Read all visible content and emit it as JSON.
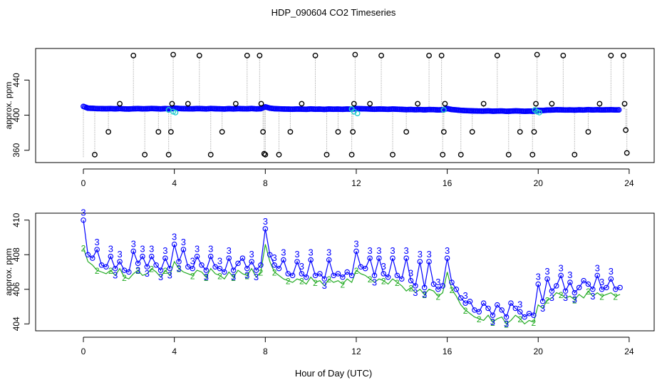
{
  "title": "HDP_090604  CO2 Timeseries",
  "xlabel": "Hour of Day (UTC)",
  "colors": {
    "blue": "#0000ff",
    "cyan": "#22cccc",
    "green": "#22aa22",
    "black": "#000000",
    "grey": "#999999"
  },
  "chart_data": [
    {
      "type": "scatter",
      "panel": "top",
      "ylabel": "approx. ppm",
      "xlim": [
        -2.1,
        25.1
      ],
      "ylim": [
        346,
        476
      ],
      "xticks": [
        0,
        4,
        8,
        12,
        16,
        20,
        24
      ],
      "yticks": [
        360,
        400,
        440
      ],
      "series": [
        {
          "name": "blue",
          "x": [
            0,
            0.2,
            0.4,
            0.6,
            0.8,
            1,
            1.2,
            1.4,
            1.6,
            1.8,
            2,
            2.2,
            2.4,
            2.6,
            2.8,
            3,
            3.2,
            3.4,
            3.6,
            3.8,
            4,
            4.2,
            4.4,
            4.6,
            4.8,
            5,
            5.2,
            5.4,
            5.6,
            5.8,
            6,
            6.2,
            6.4,
            6.6,
            6.8,
            7,
            7.2,
            7.4,
            7.6,
            7.8,
            8,
            8.2,
            8.4,
            8.6,
            8.8,
            9,
            9.2,
            9.4,
            9.6,
            9.8,
            10,
            10.2,
            10.4,
            10.6,
            10.8,
            11,
            11.2,
            11.4,
            11.6,
            11.8,
            12,
            12.2,
            12.4,
            12.6,
            12.8,
            13,
            13.2,
            13.4,
            13.6,
            13.8,
            14,
            14.2,
            14.4,
            14.6,
            14.8,
            15,
            15.2,
            15.4,
            15.6,
            15.8,
            16,
            16.2,
            16.4,
            16.6,
            16.8,
            17,
            17.2,
            17.4,
            17.6,
            17.8,
            18,
            18.2,
            18.4,
            18.6,
            18.8,
            19,
            19.2,
            19.4,
            19.6,
            19.8,
            20,
            20.2,
            20.4,
            20.6,
            20.8,
            21,
            21.2,
            21.4,
            21.6,
            21.8,
            22,
            22.2,
            22.4,
            22.6,
            22.8,
            23,
            23.2,
            23.4,
            23.6
          ],
          "y": [
            410,
            408,
            407.8,
            407.5,
            407.4,
            407.3,
            407.5,
            407.2,
            407.6,
            407.1,
            407,
            407.3,
            407.5,
            407.2,
            407.3,
            407.6,
            407.4,
            407.1,
            407.5,
            407.2,
            408,
            407.6,
            407.4,
            407.3,
            407.2,
            407.5,
            407.4,
            407.1,
            407.6,
            407.3,
            407.2,
            407,
            407.4,
            407.1,
            407.5,
            407.3,
            407.2,
            407.6,
            407.1,
            407.4,
            409.5,
            408,
            407.4,
            407.2,
            407,
            406.9,
            406.8,
            407,
            406.9,
            406.7,
            407.1,
            406.8,
            406.9,
            406.6,
            407,
            406.8,
            406.9,
            406.7,
            407,
            406.8,
            407.5,
            407.3,
            407.2,
            407,
            406.8,
            407,
            406.9,
            406.7,
            407,
            406.8,
            406.6,
            406.3,
            406.5,
            406.2,
            406.4,
            406.1,
            406.4,
            406.3,
            406,
            406.2,
            407.5,
            406.4,
            406,
            405.5,
            405.2,
            405,
            404.8,
            404.7,
            404.6,
            404.9,
            404.5,
            404.7,
            404.8,
            404.4,
            404.6,
            404.9,
            404.7,
            404.4,
            404.6,
            404.5,
            405.5,
            405.3,
            405.8,
            405.9,
            406.2,
            406.1,
            405.9,
            406,
            405.8,
            406.1,
            405.9,
            406.3,
            406,
            406.2,
            406,
            406.1,
            406.2,
            406,
            406.1
          ]
        },
        {
          "name": "cyan",
          "x": [
            3.75,
            3.95,
            4.05,
            11.8,
            11.9,
            12.05,
            15.85,
            19.85,
            19.95,
            20.05
          ],
          "y": [
            406,
            404,
            403,
            407,
            404,
            402,
            406,
            406,
            404,
            403
          ]
        },
        {
          "name": "black",
          "x": [
            0.5,
            1.1,
            1.6,
            2.2,
            2.7,
            3.3,
            3.75,
            3.85,
            3.9,
            3.95,
            4.6,
            5.1,
            5.6,
            6.1,
            6.7,
            7.2,
            7.75,
            7.82,
            7.9,
            7.95,
            8,
            8.6,
            9.1,
            9.6,
            10.2,
            10.7,
            11.2,
            11.8,
            11.85,
            11.9,
            11.95,
            12.6,
            13.1,
            13.6,
            14.2,
            14.7,
            15.2,
            15.75,
            15.8,
            15.85,
            15.9,
            16.6,
            17.1,
            17.6,
            18.2,
            18.7,
            19.2,
            19.75,
            19.82,
            19.9,
            19.95,
            20.6,
            21.1,
            21.6,
            22.2,
            22.7,
            23.2,
            23.75,
            23.8,
            23.85,
            23.9
          ],
          "y": [
            355,
            381,
            413,
            468,
            355,
            381,
            355,
            381,
            413,
            469,
            413,
            468,
            355,
            381,
            413,
            468,
            468,
            413,
            381,
            356,
            355,
            355,
            381,
            413,
            468,
            355,
            381,
            355,
            381,
            413,
            469,
            413,
            468,
            355,
            381,
            413,
            468,
            468,
            355,
            381,
            413,
            355,
            381,
            413,
            468,
            355,
            381,
            355,
            381,
            413,
            469,
            413,
            468,
            355,
            381,
            413,
            468,
            468,
            413,
            383,
            357
          ]
        }
      ]
    },
    {
      "type": "line",
      "panel": "bottom",
      "ylabel": "approx. ppm",
      "xlim": [
        -2.1,
        25.1
      ],
      "ylim": [
        403.6,
        410.4
      ],
      "xticks": [
        0,
        4,
        8,
        12,
        16,
        20,
        24
      ],
      "yticks": [
        404,
        406,
        408,
        410
      ],
      "series": [
        {
          "name": "3",
          "x": [
            0,
            0.2,
            0.4,
            0.6,
            0.8,
            1,
            1.2,
            1.4,
            1.6,
            1.8,
            2,
            2.2,
            2.4,
            2.6,
            2.8,
            3,
            3.2,
            3.4,
            3.6,
            3.8,
            4,
            4.2,
            4.4,
            4.6,
            4.8,
            5,
            5.2,
            5.4,
            5.6,
            5.8,
            6,
            6.2,
            6.4,
            6.6,
            6.8,
            7,
            7.2,
            7.4,
            7.6,
            7.8,
            8,
            8.2,
            8.4,
            8.6,
            8.8,
            9,
            9.2,
            9.4,
            9.6,
            9.8,
            10,
            10.2,
            10.4,
            10.6,
            10.8,
            11,
            11.2,
            11.4,
            11.6,
            11.8,
            12,
            12.2,
            12.4,
            12.6,
            12.8,
            13,
            13.2,
            13.4,
            13.6,
            13.8,
            14,
            14.2,
            14.4,
            14.6,
            14.8,
            15,
            15.2,
            15.4,
            15.6,
            15.8,
            16,
            16.2,
            16.4,
            16.6,
            16.8,
            17,
            17.2,
            17.4,
            17.6,
            17.8,
            18,
            18.2,
            18.4,
            18.6,
            18.8,
            19,
            19.2,
            19.4,
            19.6,
            19.8,
            20,
            20.2,
            20.4,
            20.6,
            20.8,
            21,
            21.2,
            21.4,
            21.6,
            21.8,
            22,
            22.2,
            22.4,
            22.6,
            22.8,
            23,
            23.2,
            23.4,
            23.6
          ],
          "y": [
            410,
            408,
            407.8,
            408.3,
            407.4,
            407.3,
            407.9,
            407.2,
            407.6,
            407.1,
            407,
            408.2,
            407.5,
            407.9,
            407.3,
            407.9,
            407.4,
            407.1,
            407.8,
            407.2,
            408.6,
            407.6,
            408.3,
            407.3,
            407.2,
            407.9,
            407.4,
            407.1,
            407.9,
            407.3,
            407.2,
            407,
            407.8,
            407.1,
            407.5,
            407.8,
            407.2,
            407.6,
            407.1,
            407.4,
            409.5,
            408,
            407.4,
            407.2,
            407.7,
            406.9,
            406.8,
            407.6,
            406.9,
            406.7,
            407.7,
            406.8,
            406.9,
            406.6,
            407.7,
            406.8,
            406.9,
            406.7,
            407,
            406.8,
            408.2,
            407.3,
            407.2,
            407.8,
            406.8,
            407.8,
            406.9,
            406.7,
            407.8,
            406.8,
            406.6,
            407.8,
            406.5,
            406.2,
            407.6,
            406.1,
            407.6,
            406.3,
            406,
            406.2,
            407.8,
            406.4,
            406,
            405.5,
            405.2,
            405.3,
            404.8,
            404.7,
            405.2,
            404.9,
            404.5,
            405.1,
            404.8,
            404.4,
            405.2,
            404.9,
            404.7,
            404.4,
            404.6,
            404.5,
            406.3,
            405.3,
            406.6,
            405.9,
            406.2,
            406.8,
            405.9,
            406.4,
            405.8,
            406.1,
            406.5,
            406.3,
            406,
            406.8,
            406,
            406.1,
            406.6,
            406,
            406.1
          ]
        },
        {
          "name": "2",
          "x": [
            0,
            0.2,
            0.4,
            0.6,
            0.8,
            1,
            1.2,
            1.4,
            1.6,
            1.8,
            2,
            2.2,
            2.4,
            2.6,
            2.8,
            3,
            3.2,
            3.4,
            3.6,
            3.8,
            4,
            4.2,
            4.4,
            4.6,
            4.8,
            5,
            5.2,
            5.4,
            5.6,
            5.8,
            6,
            6.2,
            6.4,
            6.6,
            6.8,
            7,
            7.2,
            7.4,
            7.6,
            7.8,
            8,
            8.2,
            8.4,
            8.6,
            8.8,
            9,
            9.2,
            9.4,
            9.6,
            9.8,
            10,
            10.2,
            10.4,
            10.6,
            10.8,
            11,
            11.2,
            11.4,
            11.6,
            11.8,
            12,
            12.2,
            12.4,
            12.6,
            12.8,
            13,
            13.2,
            13.4,
            13.6,
            13.8,
            14,
            14.2,
            14.4,
            14.6,
            14.8,
            15,
            15.2,
            15.4,
            15.6,
            15.8,
            16,
            16.2,
            16.4,
            16.6,
            16.8,
            17,
            17.2,
            17.4,
            17.6,
            17.8,
            18,
            18.2,
            18.4,
            18.6,
            18.8,
            19,
            19.2,
            19.4,
            19.6,
            19.8,
            20,
            20.2,
            20.4,
            20.6,
            20.8,
            21,
            21.2,
            21.4,
            21.6,
            21.8,
            22,
            22.2,
            22.4,
            22.6,
            22.8,
            23,
            23.2,
            23.4,
            23.6
          ],
          "y": [
            408.4,
            407.6,
            407.4,
            407.1,
            407,
            406.9,
            407.1,
            406.8,
            407.2,
            406.7,
            406.6,
            406.9,
            407.1,
            406.8,
            406.9,
            407.2,
            407,
            406.7,
            407.1,
            406.8,
            407.6,
            407.2,
            407,
            406.9,
            406.8,
            407.1,
            407,
            406.7,
            407.2,
            406.9,
            406.8,
            406.6,
            407,
            406.7,
            407.1,
            406.9,
            406.8,
            407.2,
            406.7,
            407,
            408.6,
            407.6,
            407,
            406.8,
            406.6,
            406.5,
            406.4,
            406.6,
            406.5,
            406.3,
            406.7,
            406.4,
            406.5,
            406.2,
            406.6,
            406.4,
            406.5,
            406.3,
            406.6,
            406.4,
            407.1,
            406.9,
            406.8,
            406.6,
            406.4,
            406.6,
            406.5,
            406.3,
            406.6,
            406.4,
            406.2,
            405.9,
            406.1,
            405.8,
            406,
            405.7,
            406,
            405.9,
            405.6,
            405.8,
            407,
            406,
            405.6,
            405.1,
            404.8,
            404.6,
            404.4,
            404.3,
            404.2,
            404.5,
            404.1,
            404.3,
            404.4,
            404,
            404.2,
            404.5,
            404.3,
            404,
            404.2,
            404.1,
            405.1,
            404.9,
            405.4,
            405.5,
            405.8,
            405.7,
            405.5,
            405.6,
            405.4,
            405.7,
            405.5,
            405.9,
            405.6,
            405.8,
            405.6,
            405.7,
            405.8,
            405.6,
            405.7
          ]
        }
      ]
    }
  ]
}
